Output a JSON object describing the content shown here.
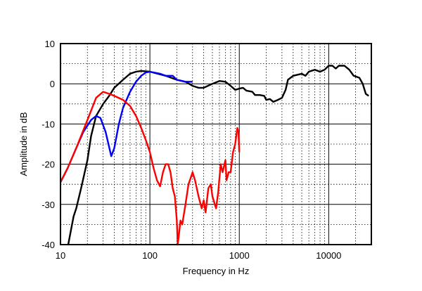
{
  "chart_data": {
    "type": "line",
    "title": "",
    "xlabel": "Frequency in Hz",
    "ylabel": "Amplitude in dB",
    "xscale": "log",
    "xlim": [
      10,
      30000
    ],
    "ylim": [
      -40,
      10
    ],
    "grid": true,
    "x_ticks": [
      10,
      100,
      1000,
      10000
    ],
    "x_tick_labels": [
      "10",
      "100",
      "1000",
      "10000"
    ],
    "y_ticks": [
      10,
      0,
      -10,
      -20,
      -30,
      -40
    ],
    "y_tick_labels": [
      "10",
      "0",
      "-10",
      "-20",
      "-30",
      "-40"
    ],
    "series": [
      {
        "name": "black",
        "color": "#000000",
        "points": [
          [
            12.2,
            -40
          ],
          [
            14,
            -33
          ],
          [
            15,
            -31
          ],
          [
            17,
            -26
          ],
          [
            20,
            -19
          ],
          [
            22,
            -13
          ],
          [
            25,
            -8
          ],
          [
            30,
            -5
          ],
          [
            35,
            -3
          ],
          [
            40,
            -1
          ],
          [
            50,
            1
          ],
          [
            60,
            2.5
          ],
          [
            70,
            3
          ],
          [
            80,
            3.2
          ],
          [
            100,
            3
          ],
          [
            150,
            2
          ],
          [
            200,
            1
          ],
          [
            250,
            0.5
          ],
          [
            300,
            -0.5
          ],
          [
            350,
            -1
          ],
          [
            400,
            -1
          ],
          [
            500,
            0
          ],
          [
            600,
            0.7
          ],
          [
            700,
            0.5
          ],
          [
            800,
            -0.5
          ],
          [
            900,
            -1.5
          ],
          [
            1000,
            -1.2
          ],
          [
            1100,
            -1
          ],
          [
            1200,
            -1.7
          ],
          [
            1400,
            -2
          ],
          [
            1500,
            -2.8
          ],
          [
            1700,
            -2.8
          ],
          [
            1900,
            -3
          ],
          [
            2000,
            -4
          ],
          [
            2200,
            -3.8
          ],
          [
            2400,
            -4.5
          ],
          [
            2700,
            -4
          ],
          [
            3000,
            -3.5
          ],
          [
            3300,
            -1.5
          ],
          [
            3500,
            1
          ],
          [
            4000,
            2
          ],
          [
            5000,
            2.5
          ],
          [
            5500,
            2
          ],
          [
            6000,
            3
          ],
          [
            7000,
            3.5
          ],
          [
            8000,
            3
          ],
          [
            9000,
            3.5
          ],
          [
            10000,
            4.5
          ],
          [
            11000,
            4.5
          ],
          [
            12000,
            3.8
          ],
          [
            13000,
            4.5
          ],
          [
            15000,
            4.5
          ],
          [
            17000,
            3.5
          ],
          [
            19000,
            2
          ],
          [
            22000,
            1.5
          ],
          [
            24000,
            0
          ],
          [
            26000,
            -2.5
          ],
          [
            28000,
            -3
          ]
        ]
      },
      {
        "name": "blue",
        "color": "#0000ff",
        "points": [
          [
            10,
            -24.5
          ],
          [
            12,
            -21
          ],
          [
            15,
            -16
          ],
          [
            18,
            -12
          ],
          [
            22,
            -9
          ],
          [
            25,
            -8
          ],
          [
            28,
            -8.5
          ],
          [
            32,
            -12
          ],
          [
            37,
            -18
          ],
          [
            40,
            -16
          ],
          [
            45,
            -10
          ],
          [
            50,
            -6
          ],
          [
            60,
            -2
          ],
          [
            70,
            0.5
          ],
          [
            80,
            2
          ],
          [
            90,
            2.8
          ],
          [
            100,
            3
          ],
          [
            130,
            2.5
          ],
          [
            150,
            2
          ],
          [
            180,
            2
          ],
          [
            200,
            1
          ],
          [
            250,
            0.5
          ],
          [
            300,
            0.5
          ]
        ]
      },
      {
        "name": "red",
        "color": "#ff0000",
        "points": [
          [
            10,
            -24.5
          ],
          [
            12,
            -21
          ],
          [
            15,
            -16
          ],
          [
            20,
            -9
          ],
          [
            25,
            -3.5
          ],
          [
            30,
            -2
          ],
          [
            35,
            -2.5
          ],
          [
            40,
            -3
          ],
          [
            50,
            -4
          ],
          [
            60,
            -5.5
          ],
          [
            70,
            -8
          ],
          [
            80,
            -11
          ],
          [
            90,
            -14
          ],
          [
            100,
            -17
          ],
          [
            110,
            -21
          ],
          [
            120,
            -24
          ],
          [
            130,
            -25.5
          ],
          [
            140,
            -22
          ],
          [
            150,
            -20
          ],
          [
            160,
            -20
          ],
          [
            170,
            -22
          ],
          [
            180,
            -26
          ],
          [
            190,
            -28
          ],
          [
            200,
            -34
          ],
          [
            205,
            -40
          ],
          [
            210,
            -38
          ],
          [
            220,
            -34
          ],
          [
            230,
            -35
          ],
          [
            250,
            -30
          ],
          [
            270,
            -25
          ],
          [
            290,
            -23
          ],
          [
            300,
            -22
          ],
          [
            320,
            -24
          ],
          [
            350,
            -28
          ],
          [
            380,
            -31
          ],
          [
            400,
            -29
          ],
          [
            420,
            -32
          ],
          [
            450,
            -26
          ],
          [
            480,
            -25
          ],
          [
            500,
            -28
          ],
          [
            550,
            -31
          ],
          [
            580,
            -27
          ],
          [
            620,
            -20
          ],
          [
            650,
            -22
          ],
          [
            700,
            -19
          ],
          [
            720,
            -24
          ],
          [
            760,
            -22
          ],
          [
            800,
            -22
          ],
          [
            850,
            -17
          ],
          [
            900,
            -15
          ],
          [
            950,
            -11
          ],
          [
            980,
            -12
          ],
          [
            1000,
            -17
          ]
        ]
      }
    ]
  }
}
